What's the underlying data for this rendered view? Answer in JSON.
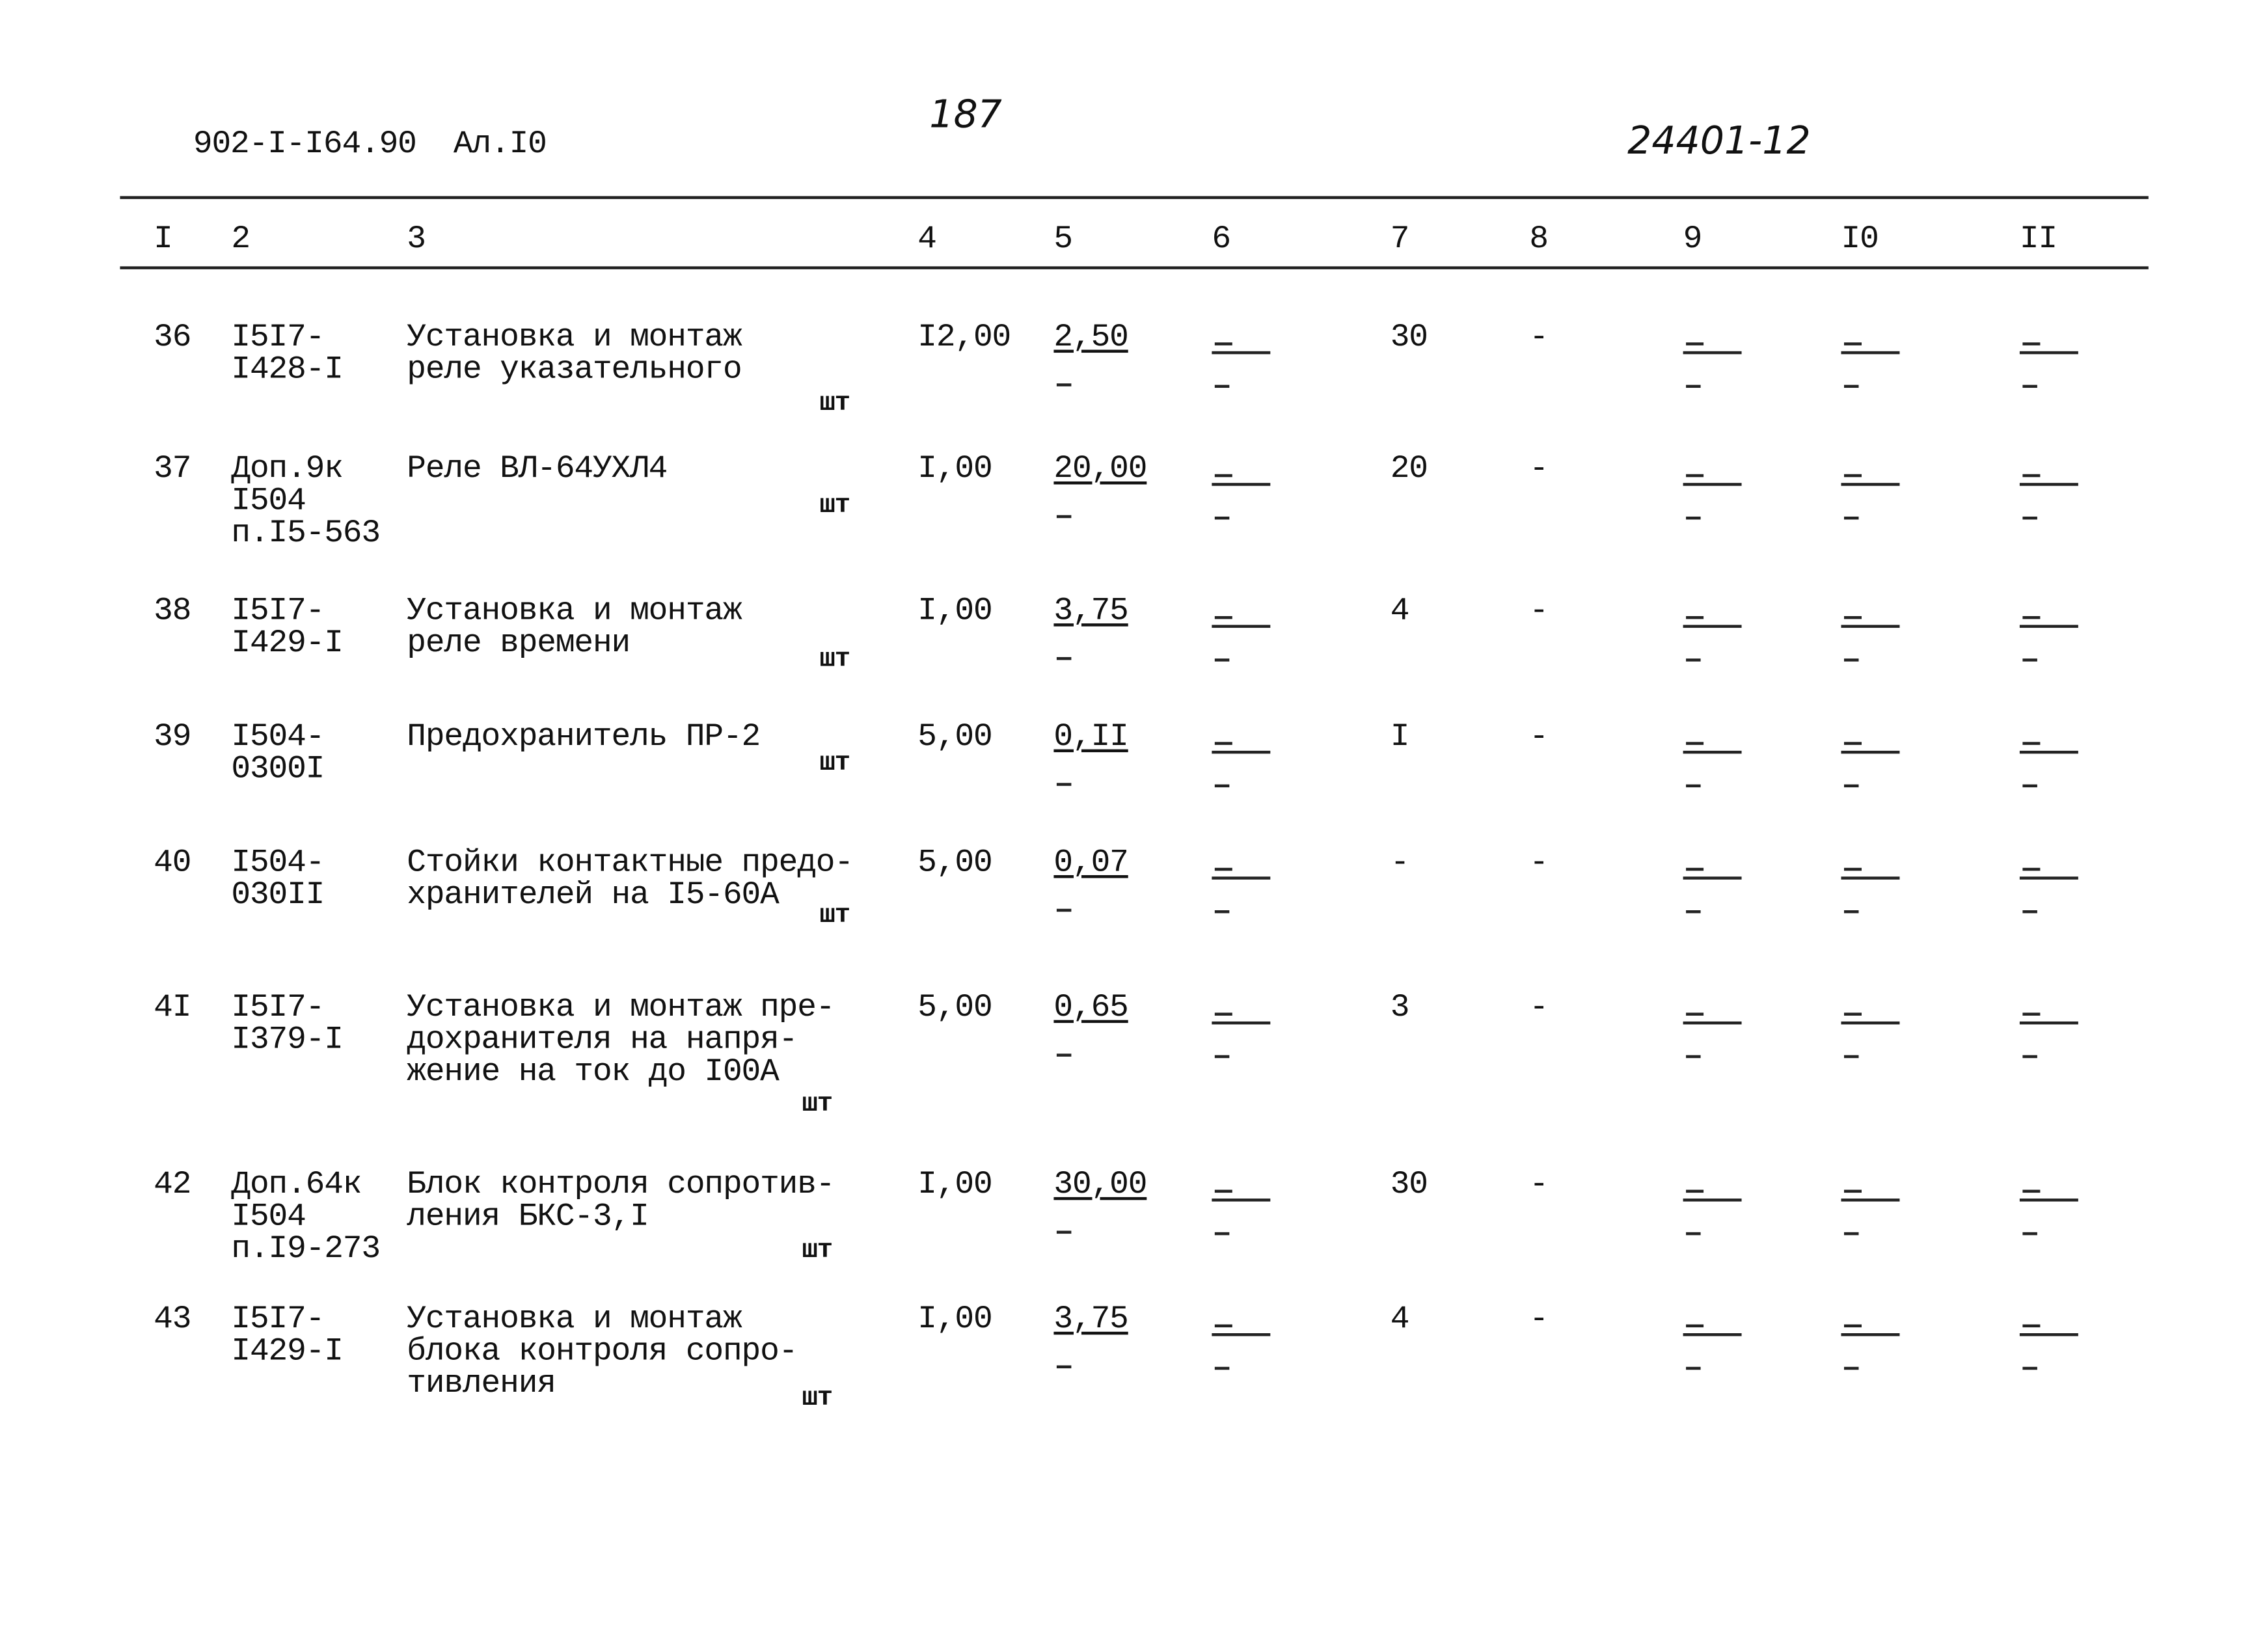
{
  "header": {
    "doc_code": "902-I-I64.90  Ал.I0",
    "page_number": "187",
    "sheet_code": "24401-12"
  },
  "columns": [
    "I",
    "2",
    "3",
    "4",
    "5",
    "6",
    "7",
    "8",
    "9",
    "I0",
    "II"
  ],
  "rows": [
    {
      "n": "36",
      "code": [
        "I5I7-",
        "I428-I"
      ],
      "name": [
        "Установка и монтаж",
        "реле указательного"
      ],
      "unit": "шт",
      "qty": "I2,00",
      "price": "2,50",
      "c7": "30",
      "c8": "-"
    },
    {
      "n": "37",
      "code": [
        "Доп.9к",
        "I504",
        "п.I5-563"
      ],
      "name": [
        "Реле ВЛ-64УХЛ4"
      ],
      "unit": "шт",
      "qty": "I,00",
      "price": "20,00",
      "c7": "20",
      "c8": "-"
    },
    {
      "n": "38",
      "code": [
        "I5I7-",
        "I429-I"
      ],
      "name": [
        "Установка и монтаж",
        "реле времени"
      ],
      "unit": "шт",
      "qty": "I,00",
      "price": "3,75",
      "c7": "4",
      "c8": "-"
    },
    {
      "n": "39",
      "code": [
        "I504-",
        "0300I"
      ],
      "name": [
        "Предохранитель ПР-2"
      ],
      "unit": "шт",
      "qty": "5,00",
      "price": "0,II",
      "c7": "I",
      "c8": "-"
    },
    {
      "n": "40",
      "code": [
        "I504-",
        "030II"
      ],
      "name": [
        "Стойки контактные предо-",
        "хранителей на I5-60А"
      ],
      "unit": "шт",
      "qty": "5,00",
      "price": "0,07",
      "c7": "-",
      "c8": "-"
    },
    {
      "n": "4I",
      "code": [
        "I5I7-",
        "I379-I"
      ],
      "name": [
        "Установка и монтаж пре-",
        "дохранителя на напря-",
        "жение на ток до I00А"
      ],
      "unit": "шт",
      "qty": "5,00",
      "price": "0,65",
      "c7": "3",
      "c8": "-"
    },
    {
      "n": "42",
      "code": [
        "Доп.64к",
        "I504",
        "п.I9-273"
      ],
      "name": [
        "Блок контроля сопротив-",
        "ления БКС-3,I"
      ],
      "unit": "шт",
      "qty": "I,00",
      "price": "30,00",
      "c7": "30",
      "c8": "-"
    },
    {
      "n": "43",
      "code": [
        "I5I7-",
        "I429-I"
      ],
      "name": [
        "Установка и монтаж",
        "блока контроля сопро-",
        "тивления"
      ],
      "unit": "шт",
      "qty": "I,00",
      "price": "3,75",
      "c7": "4",
      "c8": "-"
    }
  ],
  "empty_mark": "-"
}
